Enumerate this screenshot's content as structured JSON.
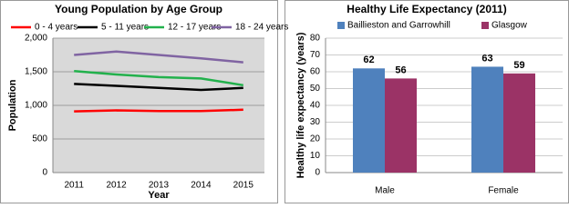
{
  "chart_data": [
    {
      "type": "line",
      "title": "Young Population by Age Group",
      "x_label": "Year",
      "y_label": "Population",
      "categories": [
        "2011",
        "2012",
        "2013",
        "2014",
        "2015"
      ],
      "series": [
        {
          "name": "0 - 4 years",
          "color": "#ff0000",
          "values": [
            910,
            925,
            915,
            915,
            935
          ]
        },
        {
          "name": "5 - 11 years",
          "color": "#000000",
          "values": [
            1320,
            1290,
            1260,
            1230,
            1260
          ]
        },
        {
          "name": "12 - 17 years",
          "color": "#22b14c",
          "values": [
            1510,
            1460,
            1420,
            1400,
            1300
          ]
        },
        {
          "name": "18 - 24 years",
          "color": "#8064a2",
          "values": [
            1750,
            1800,
            1750,
            1700,
            1640
          ]
        }
      ],
      "ylim": [
        0,
        2000
      ],
      "yticks": [
        0,
        500,
        {
          "value": 1000,
          "label": "1,000"
        },
        {
          "value": 1500,
          "label": "1,500"
        },
        {
          "value": 2000,
          "label": "2,000"
        }
      ],
      "grid": true
    },
    {
      "type": "bar",
      "title": "Healthy Life Expectancy (2011)",
      "y_label": "Healthy life expectancy (years)",
      "categories": [
        "Male",
        "Female"
      ],
      "series": [
        {
          "name": "Baillieston and Garrowhill",
          "color": "#4f81bd",
          "values": [
            62,
            63
          ]
        },
        {
          "name": "Glasgow",
          "color": "#9b3366",
          "values": [
            56,
            59
          ]
        }
      ],
      "ylim": [
        0,
        80
      ],
      "yticks": [
        0,
        10,
        20,
        30,
        40,
        50,
        60,
        70,
        80
      ],
      "grid": true
    }
  ]
}
